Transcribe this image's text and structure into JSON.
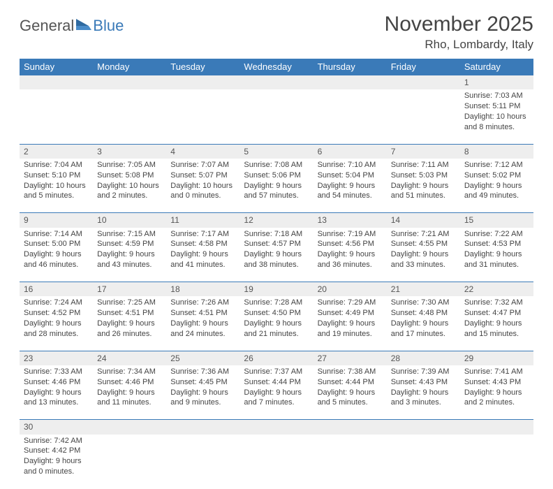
{
  "logo": {
    "part1": "General",
    "part2": "Blue"
  },
  "title": "November 2025",
  "subtitle": "Rho, Lombardy, Italy",
  "colors": {
    "header_bg": "#3a7ab8",
    "daynum_bg": "#eeeeee",
    "text": "#444444",
    "divider": "#3a7ab8"
  },
  "day_headers": [
    "Sunday",
    "Monday",
    "Tuesday",
    "Wednesday",
    "Thursday",
    "Friday",
    "Saturday"
  ],
  "weeks": [
    [
      null,
      null,
      null,
      null,
      null,
      null,
      {
        "n": "1",
        "sr": "Sunrise: 7:03 AM",
        "ss": "Sunset: 5:11 PM",
        "d1": "Daylight: 10 hours",
        "d2": "and 8 minutes."
      }
    ],
    [
      {
        "n": "2",
        "sr": "Sunrise: 7:04 AM",
        "ss": "Sunset: 5:10 PM",
        "d1": "Daylight: 10 hours",
        "d2": "and 5 minutes."
      },
      {
        "n": "3",
        "sr": "Sunrise: 7:05 AM",
        "ss": "Sunset: 5:08 PM",
        "d1": "Daylight: 10 hours",
        "d2": "and 2 minutes."
      },
      {
        "n": "4",
        "sr": "Sunrise: 7:07 AM",
        "ss": "Sunset: 5:07 PM",
        "d1": "Daylight: 10 hours",
        "d2": "and 0 minutes."
      },
      {
        "n": "5",
        "sr": "Sunrise: 7:08 AM",
        "ss": "Sunset: 5:06 PM",
        "d1": "Daylight: 9 hours",
        "d2": "and 57 minutes."
      },
      {
        "n": "6",
        "sr": "Sunrise: 7:10 AM",
        "ss": "Sunset: 5:04 PM",
        "d1": "Daylight: 9 hours",
        "d2": "and 54 minutes."
      },
      {
        "n": "7",
        "sr": "Sunrise: 7:11 AM",
        "ss": "Sunset: 5:03 PM",
        "d1": "Daylight: 9 hours",
        "d2": "and 51 minutes."
      },
      {
        "n": "8",
        "sr": "Sunrise: 7:12 AM",
        "ss": "Sunset: 5:02 PM",
        "d1": "Daylight: 9 hours",
        "d2": "and 49 minutes."
      }
    ],
    [
      {
        "n": "9",
        "sr": "Sunrise: 7:14 AM",
        "ss": "Sunset: 5:00 PM",
        "d1": "Daylight: 9 hours",
        "d2": "and 46 minutes."
      },
      {
        "n": "10",
        "sr": "Sunrise: 7:15 AM",
        "ss": "Sunset: 4:59 PM",
        "d1": "Daylight: 9 hours",
        "d2": "and 43 minutes."
      },
      {
        "n": "11",
        "sr": "Sunrise: 7:17 AM",
        "ss": "Sunset: 4:58 PM",
        "d1": "Daylight: 9 hours",
        "d2": "and 41 minutes."
      },
      {
        "n": "12",
        "sr": "Sunrise: 7:18 AM",
        "ss": "Sunset: 4:57 PM",
        "d1": "Daylight: 9 hours",
        "d2": "and 38 minutes."
      },
      {
        "n": "13",
        "sr": "Sunrise: 7:19 AM",
        "ss": "Sunset: 4:56 PM",
        "d1": "Daylight: 9 hours",
        "d2": "and 36 minutes."
      },
      {
        "n": "14",
        "sr": "Sunrise: 7:21 AM",
        "ss": "Sunset: 4:55 PM",
        "d1": "Daylight: 9 hours",
        "d2": "and 33 minutes."
      },
      {
        "n": "15",
        "sr": "Sunrise: 7:22 AM",
        "ss": "Sunset: 4:53 PM",
        "d1": "Daylight: 9 hours",
        "d2": "and 31 minutes."
      }
    ],
    [
      {
        "n": "16",
        "sr": "Sunrise: 7:24 AM",
        "ss": "Sunset: 4:52 PM",
        "d1": "Daylight: 9 hours",
        "d2": "and 28 minutes."
      },
      {
        "n": "17",
        "sr": "Sunrise: 7:25 AM",
        "ss": "Sunset: 4:51 PM",
        "d1": "Daylight: 9 hours",
        "d2": "and 26 minutes."
      },
      {
        "n": "18",
        "sr": "Sunrise: 7:26 AM",
        "ss": "Sunset: 4:51 PM",
        "d1": "Daylight: 9 hours",
        "d2": "and 24 minutes."
      },
      {
        "n": "19",
        "sr": "Sunrise: 7:28 AM",
        "ss": "Sunset: 4:50 PM",
        "d1": "Daylight: 9 hours",
        "d2": "and 21 minutes."
      },
      {
        "n": "20",
        "sr": "Sunrise: 7:29 AM",
        "ss": "Sunset: 4:49 PM",
        "d1": "Daylight: 9 hours",
        "d2": "and 19 minutes."
      },
      {
        "n": "21",
        "sr": "Sunrise: 7:30 AM",
        "ss": "Sunset: 4:48 PM",
        "d1": "Daylight: 9 hours",
        "d2": "and 17 minutes."
      },
      {
        "n": "22",
        "sr": "Sunrise: 7:32 AM",
        "ss": "Sunset: 4:47 PM",
        "d1": "Daylight: 9 hours",
        "d2": "and 15 minutes."
      }
    ],
    [
      {
        "n": "23",
        "sr": "Sunrise: 7:33 AM",
        "ss": "Sunset: 4:46 PM",
        "d1": "Daylight: 9 hours",
        "d2": "and 13 minutes."
      },
      {
        "n": "24",
        "sr": "Sunrise: 7:34 AM",
        "ss": "Sunset: 4:46 PM",
        "d1": "Daylight: 9 hours",
        "d2": "and 11 minutes."
      },
      {
        "n": "25",
        "sr": "Sunrise: 7:36 AM",
        "ss": "Sunset: 4:45 PM",
        "d1": "Daylight: 9 hours",
        "d2": "and 9 minutes."
      },
      {
        "n": "26",
        "sr": "Sunrise: 7:37 AM",
        "ss": "Sunset: 4:44 PM",
        "d1": "Daylight: 9 hours",
        "d2": "and 7 minutes."
      },
      {
        "n": "27",
        "sr": "Sunrise: 7:38 AM",
        "ss": "Sunset: 4:44 PM",
        "d1": "Daylight: 9 hours",
        "d2": "and 5 minutes."
      },
      {
        "n": "28",
        "sr": "Sunrise: 7:39 AM",
        "ss": "Sunset: 4:43 PM",
        "d1": "Daylight: 9 hours",
        "d2": "and 3 minutes."
      },
      {
        "n": "29",
        "sr": "Sunrise: 7:41 AM",
        "ss": "Sunset: 4:43 PM",
        "d1": "Daylight: 9 hours",
        "d2": "and 2 minutes."
      }
    ],
    [
      {
        "n": "30",
        "sr": "Sunrise: 7:42 AM",
        "ss": "Sunset: 4:42 PM",
        "d1": "Daylight: 9 hours",
        "d2": "and 0 minutes."
      },
      null,
      null,
      null,
      null,
      null,
      null
    ]
  ]
}
